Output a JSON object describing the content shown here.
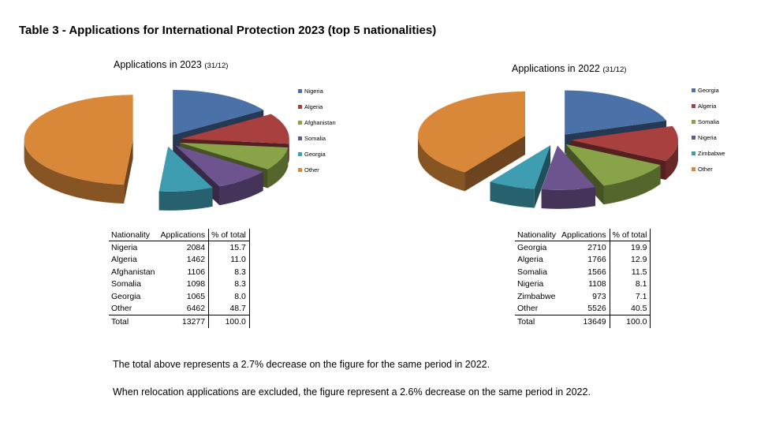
{
  "heading": "Table 3 - Applications for International Protection 2023 (top 5 nationalities)",
  "chart_data": [
    {
      "type": "pie",
      "title": "Applications in 2023",
      "subtitle": "(31/12)",
      "legend_position": "right",
      "labels": [
        "Nigeria",
        "Algeria",
        "Afghanistan",
        "Somalia",
        "Georgia",
        "Other"
      ],
      "values": [
        2084,
        1462,
        1106,
        1098,
        1065,
        6462
      ],
      "percent": [
        15.7,
        11.0,
        8.3,
        8.3,
        8.0,
        48.7
      ],
      "colors": [
        "#4a72a8",
        "#a84040",
        "#89a448",
        "#6e548f",
        "#3f9db2",
        "#d98839"
      ],
      "total": 13277
    },
    {
      "type": "pie",
      "title": "Applications in 2022",
      "subtitle": "(31/12)",
      "legend_position": "right",
      "labels": [
        "Georgia",
        "Algeria",
        "Somalia",
        "Nigeria",
        "Zimbabwe",
        "Other"
      ],
      "values": [
        2710,
        1766,
        1566,
        1108,
        973,
        5526
      ],
      "percent": [
        19.9,
        12.9,
        11.5,
        8.1,
        7.1,
        40.5
      ],
      "colors": [
        "#4a72a8",
        "#a84040",
        "#89a448",
        "#6e548f",
        "#3f9db2",
        "#d98839"
      ],
      "total": 13649
    }
  ],
  "tables": [
    {
      "headers": [
        "Nationality",
        "Applications",
        "% of total"
      ],
      "rows": [
        [
          "Nigeria",
          "2084",
          "15.7"
        ],
        [
          "Algeria",
          "1462",
          "11.0"
        ],
        [
          "Afghanistan",
          "1106",
          "8.3"
        ],
        [
          "Somalia",
          "1098",
          "8.3"
        ],
        [
          "Georgia",
          "1065",
          "8.0"
        ],
        [
          "Other",
          "6462",
          "48.7"
        ]
      ],
      "total": [
        "Total",
        "13277",
        "100.0"
      ]
    },
    {
      "headers": [
        "Nationality",
        "Applications",
        "% of total"
      ],
      "rows": [
        [
          "Georgia",
          "2710",
          "19.9"
        ],
        [
          "Algeria",
          "1766",
          "12.9"
        ],
        [
          "Somalia",
          "1566",
          "11.5"
        ],
        [
          "Nigeria",
          "1108",
          "8.1"
        ],
        [
          "Zimbabwe",
          "973",
          "7.1"
        ],
        [
          "Other",
          "5526",
          "40.5"
        ]
      ],
      "total": [
        "Total",
        "13649",
        "100.0"
      ]
    }
  ],
  "notes": [
    "The total above represents a 2.7% decrease on the figure for the same period in 2022.",
    "When relocation applications are excluded, the figure represent a 2.6% decrease on the same period in 2022."
  ]
}
